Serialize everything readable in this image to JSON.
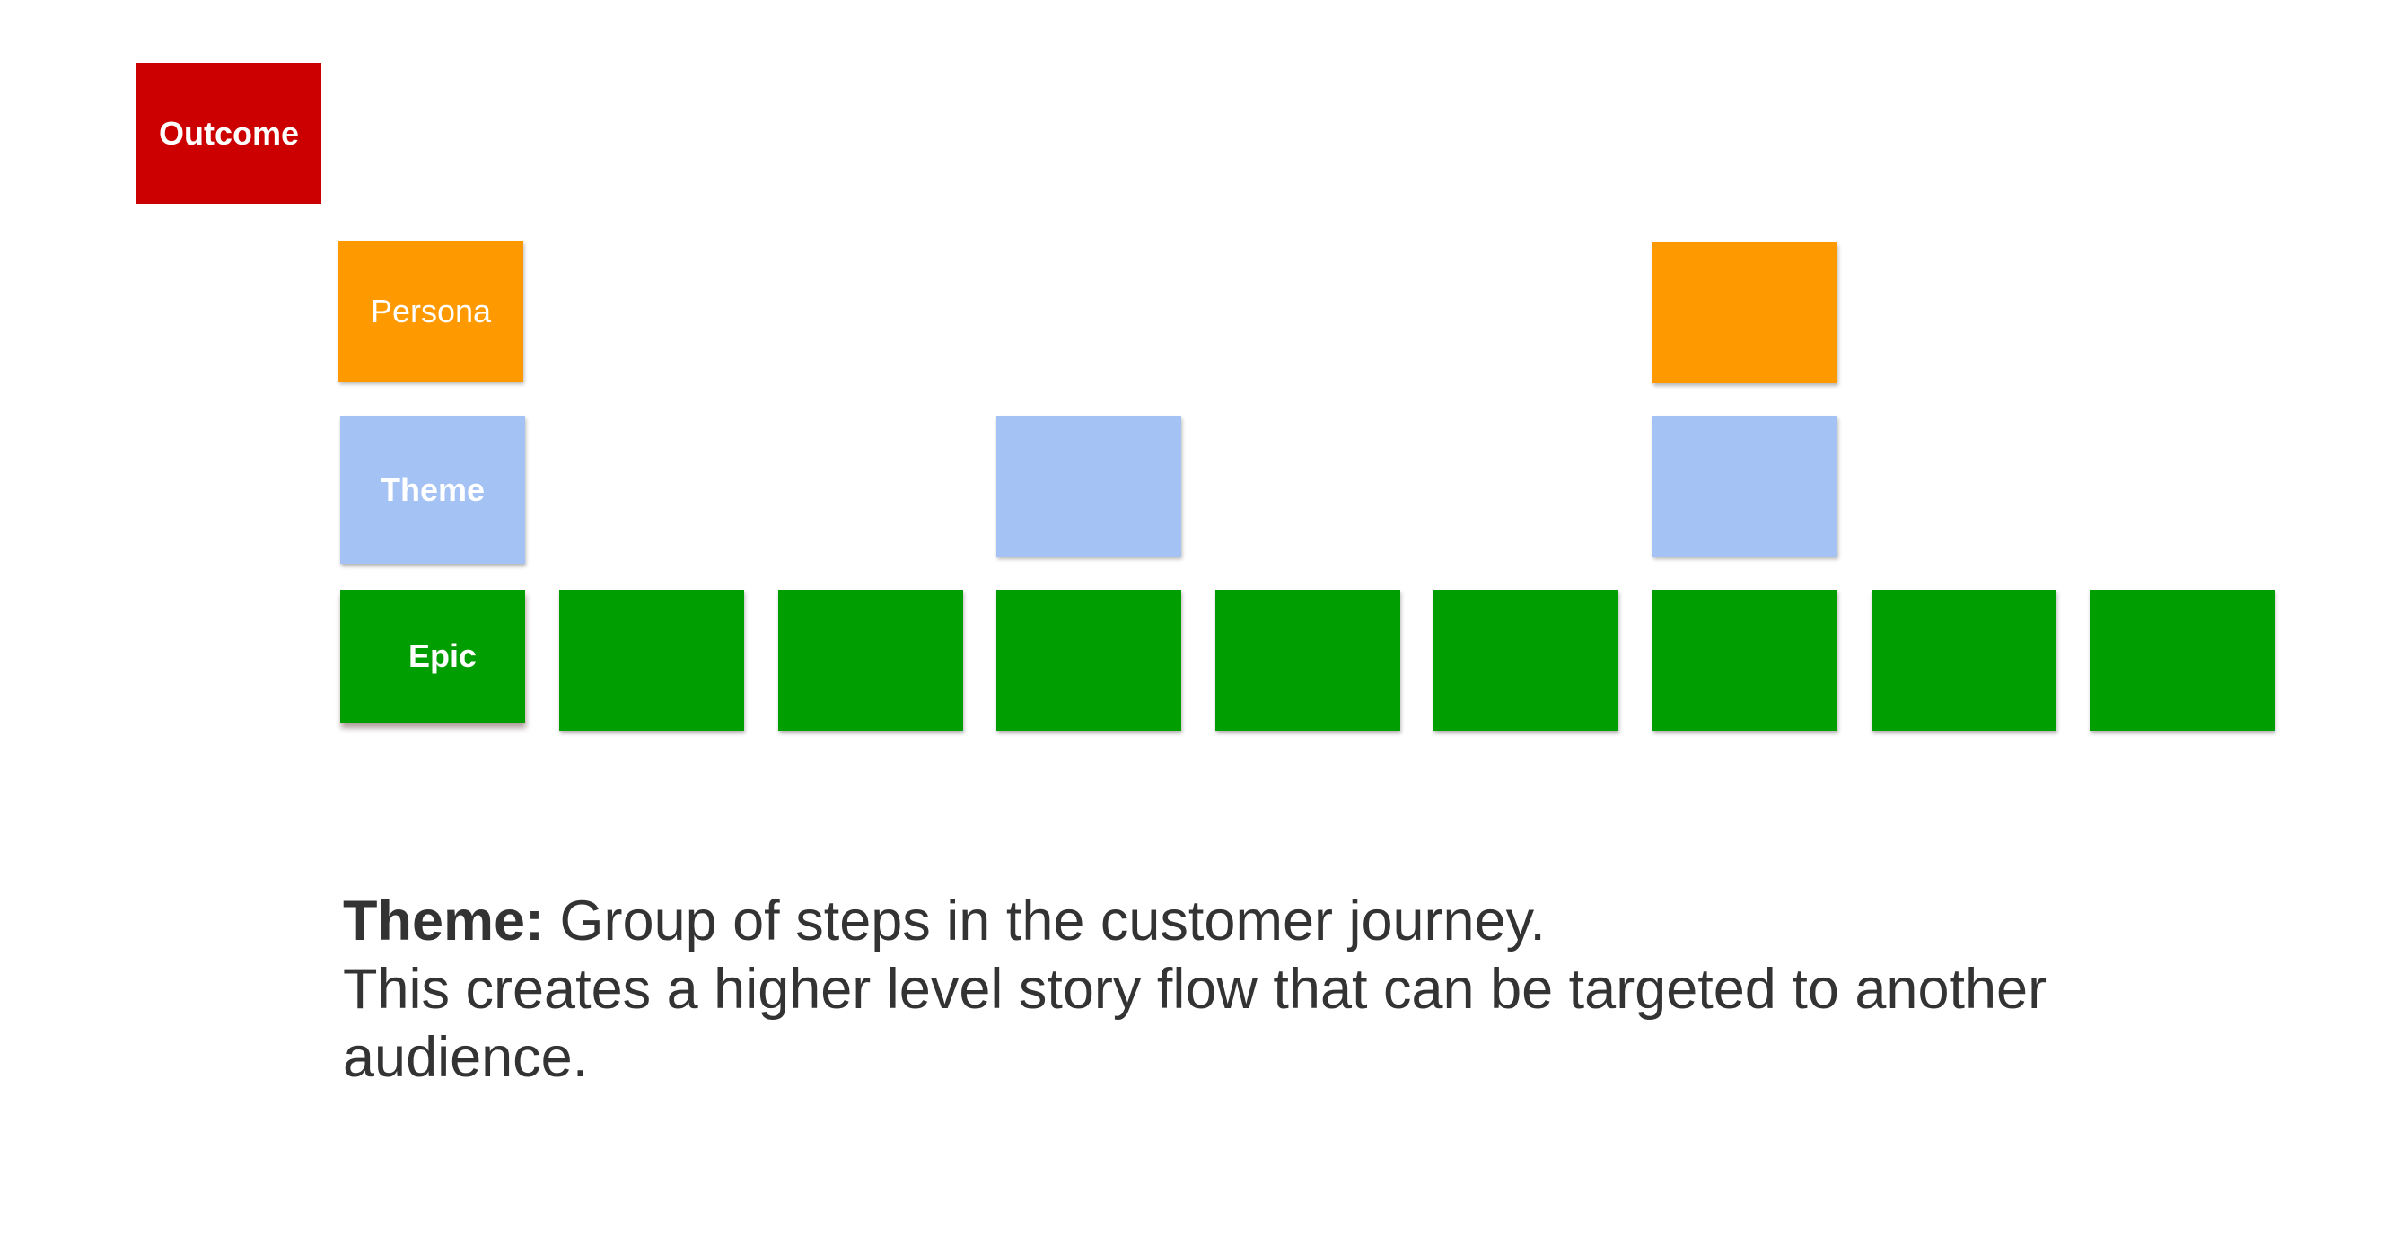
{
  "cards": {
    "outcome": {
      "label": "Outcome",
      "color": "#cc0000"
    },
    "persona": {
      "label": "Persona",
      "color": "#ff9900"
    },
    "theme": {
      "label": "Theme",
      "color": "#a4c2f4"
    },
    "epic": {
      "label": "Epic",
      "color": "#009e00"
    }
  },
  "caption": {
    "lead": "Theme:",
    "rest": " Group of steps in the customer journey.",
    "second": "This creates a higher level story flow that can be targeted to another audience."
  }
}
